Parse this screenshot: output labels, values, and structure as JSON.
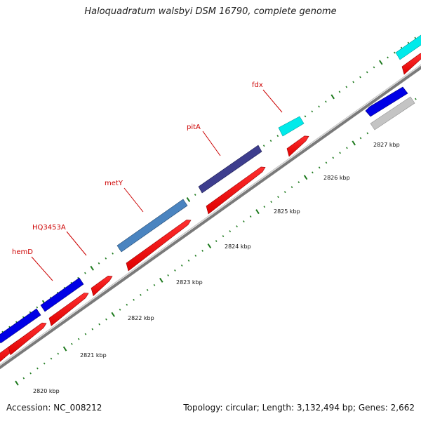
{
  "title": "Haloquadratum walsbyi DSM 16790, complete genome",
  "footer": {
    "accession": "Accession: NC_008212",
    "topology": "Topology: circular; Length: 3,132,494 bp; Genes: 2,662"
  },
  "colors": {
    "cds": "#ff0000",
    "blue": "#0000ee",
    "steelblue": "#4a84c0",
    "darkslate": "#3e3e8e",
    "cyan": "#00f0f0",
    "gray": "#c0c0c0",
    "backbone": "#808080",
    "tick": "#1e7a1e",
    "label": "#cc0000"
  },
  "scale_labels": [
    "2820 kbp",
    "2821 kbp",
    "2822 kbp",
    "2823 kbp",
    "2824 kbp",
    "2825 kbp",
    "2826 kbp",
    "2827 kbp"
  ],
  "gene_labels": [
    {
      "id": "hemD",
      "text": "hemD"
    },
    {
      "id": "hq3453a",
      "text": "HQ3453A"
    },
    {
      "id": "metY",
      "text": "metY"
    },
    {
      "id": "pitA",
      "text": "pitA"
    },
    {
      "id": "fdx",
      "text": "fdx"
    }
  ]
}
